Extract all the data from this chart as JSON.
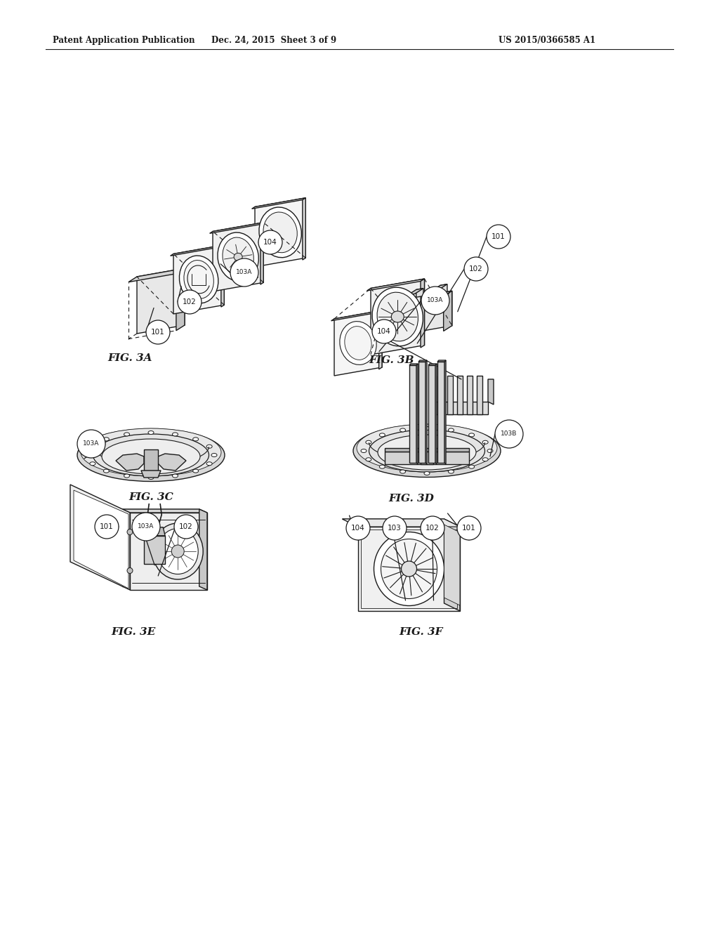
{
  "bg_color": "#ffffff",
  "line_color": "#1a1a1a",
  "header_left": "Patent Application Publication",
  "header_mid": "Dec. 24, 2015  Sheet 3 of 9",
  "header_right": "US 2015/0366585 A1",
  "fig_labels": [
    "FIG. 3A",
    "FIG. 3B",
    "FIG. 3C",
    "FIG. 3D",
    "FIG. 3E",
    "FIG. 3F"
  ],
  "gray_light": "#e8e8e8",
  "gray_mid": "#cccccc",
  "gray_dark": "#aaaaaa",
  "gray_panel": "#f0f0f0",
  "white": "#ffffff"
}
